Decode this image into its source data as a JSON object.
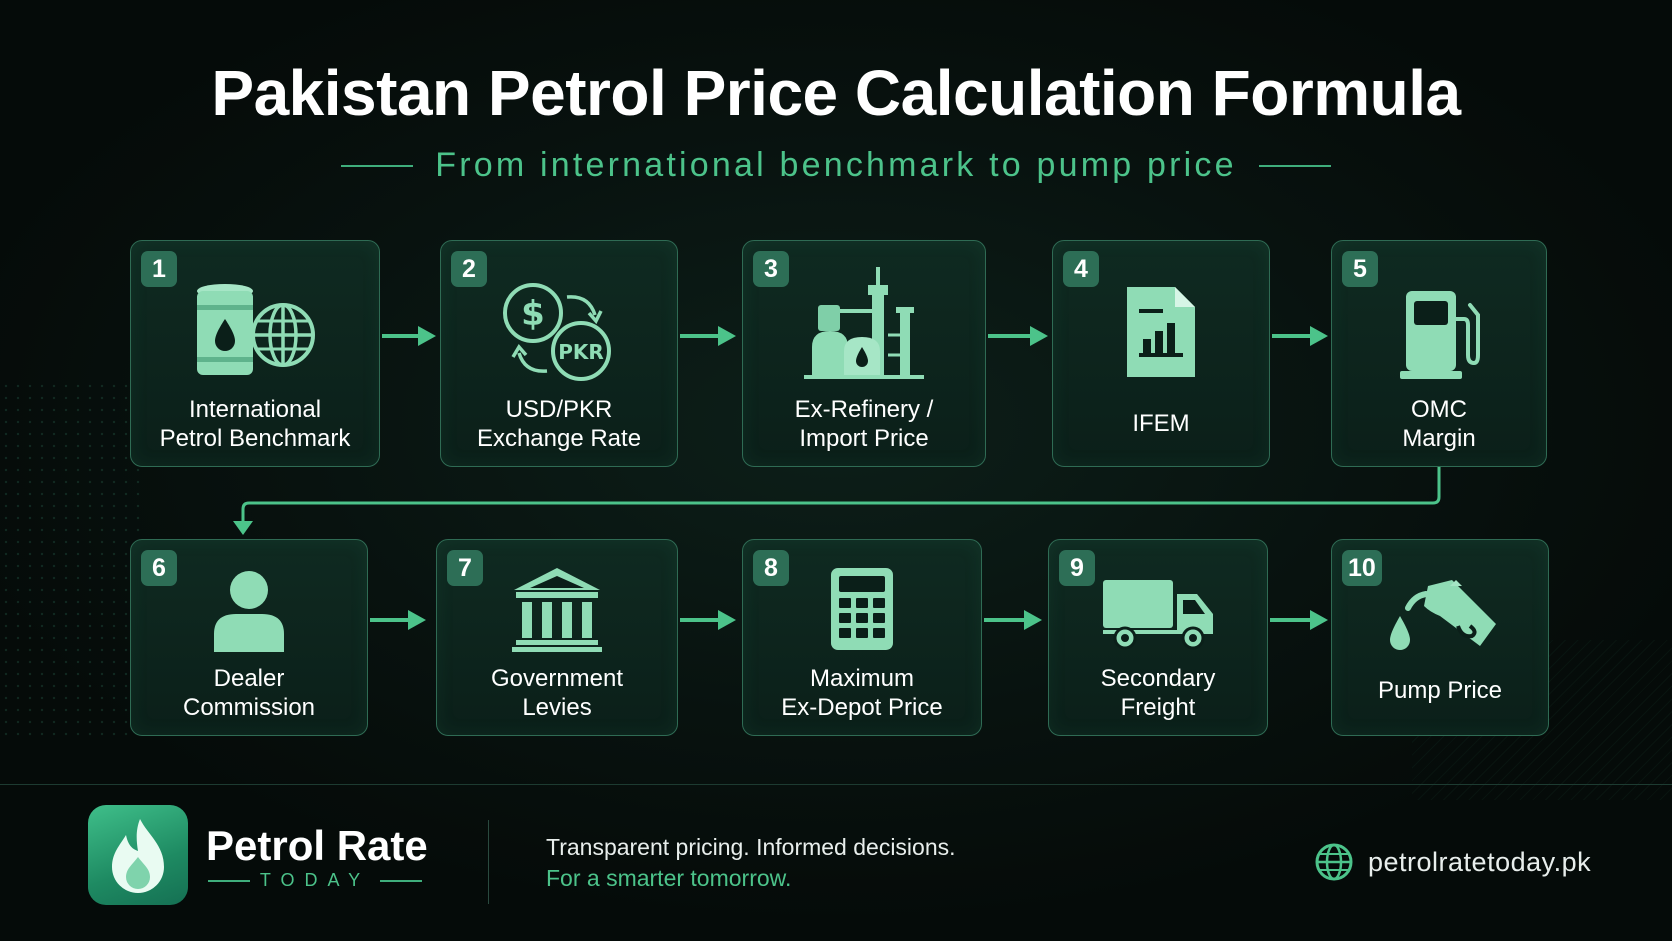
{
  "header": {
    "title": "Pakistan Petrol Price Calculation Formula",
    "subtitle": "From international benchmark to pump price"
  },
  "steps": [
    {
      "number": "1",
      "label": "International\nPetrol Benchmark",
      "icon": "oil-barrel-globe-icon"
    },
    {
      "number": "2",
      "label": "USD/PKR\nExchange Rate",
      "icon": "currency-exchange-icon",
      "icon_text": "PKR"
    },
    {
      "number": "3",
      "label": "Ex-Refinery /\nImport Price",
      "icon": "refinery-icon"
    },
    {
      "number": "4",
      "label": "IFEM",
      "icon": "document-chart-icon"
    },
    {
      "number": "5",
      "label": "OMC\nMargin",
      "icon": "fuel-pump-icon"
    },
    {
      "number": "6",
      "label": "Dealer\nCommission",
      "icon": "person-icon"
    },
    {
      "number": "7",
      "label": "Government\nLevies",
      "icon": "government-building-icon"
    },
    {
      "number": "8",
      "label": "Maximum\nEx-Depot Price",
      "icon": "calculator-icon"
    },
    {
      "number": "9",
      "label": "Secondary\nFreight",
      "icon": "truck-icon"
    },
    {
      "number": "10",
      "label": "Pump Price",
      "icon": "fuel-nozzle-icon"
    }
  ],
  "footer": {
    "brand_name": "Petrol Rate",
    "brand_sub": "TODAY",
    "tagline_1": "Transparent pricing. Informed decisions.",
    "tagline_2": "For a smarter tomorrow.",
    "website": "petrolratetoday.pk"
  },
  "colors": {
    "accent": "#4cc38a",
    "icon": "#8fdcb5",
    "box_border": "#2f6b54",
    "background": "#07100d"
  }
}
